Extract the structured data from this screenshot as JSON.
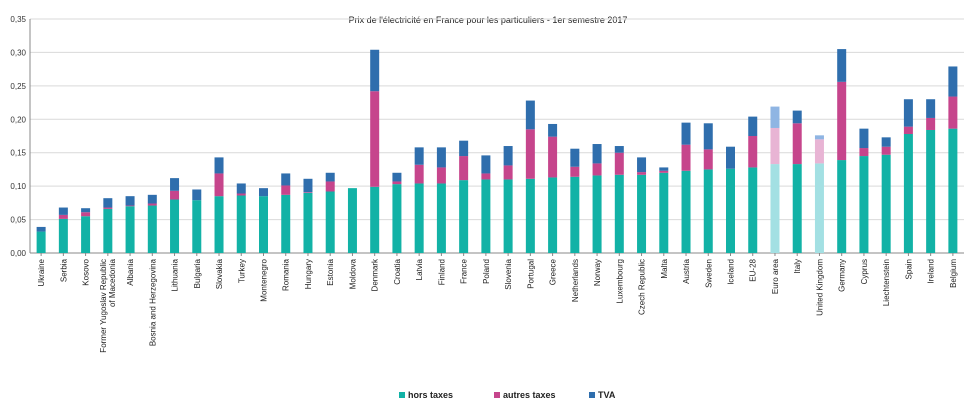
{
  "chart_data": {
    "type": "bar",
    "stacked": true,
    "title": "Prix de l'électricité en France pour les particuliers - 1er semestre 2017",
    "xlabel": "",
    "ylabel": "",
    "ylim": [
      0,
      0.35
    ],
    "yticks": [
      "0,00",
      "0,05",
      "0,10",
      "0,15",
      "0,20",
      "0,25",
      "0,30",
      "0,35"
    ],
    "grid": true,
    "legend_position": "bottom",
    "categories": [
      "Ukraine",
      "Serbia",
      "Kosovo",
      "Former Yugoslav Republic of Macedonia",
      "Albania",
      "Bosnia and Herzegovina",
      "Lithuania",
      "Bulgaria",
      "Slovakia",
      "Turkey",
      "Montenegro",
      "Romania",
      "Hungary",
      "Estonia",
      "Moldova",
      "Denmark",
      "Croatia",
      "Latvia",
      "Finland",
      "France",
      "Poland",
      "Slovenia",
      "Portugal",
      "Greece",
      "Netherlands",
      "Norway",
      "Luxembourg",
      "Czech Republic",
      "Malta",
      "Austria",
      "Sweden",
      "Iceland",
      "EU-28",
      "Euro area",
      "Italy",
      "United Kingdom",
      "Germany",
      "Cyprus",
      "Liechtenstein",
      "Spain",
      "Ireland",
      "Belgium"
    ],
    "category_lines": [
      [
        "Ukraine"
      ],
      [
        "Serbia"
      ],
      [
        "Kosovo"
      ],
      [
        "Former Yugoslav Republic",
        "of Macedonia"
      ],
      [
        "Albania"
      ],
      [
        "Bosnia and Herzegovina"
      ],
      [
        "Lithuania"
      ],
      [
        "Bulgaria"
      ],
      [
        "Slovakia"
      ],
      [
        "Turkey"
      ],
      [
        "Montenegro"
      ],
      [
        "Romania"
      ],
      [
        "Hungary"
      ],
      [
        "Estonia"
      ],
      [
        "Moldova"
      ],
      [
        "Denmark"
      ],
      [
        "Croatia"
      ],
      [
        "Latvia"
      ],
      [
        "Finland"
      ],
      [
        "France"
      ],
      [
        "Poland"
      ],
      [
        "Slovenia"
      ],
      [
        "Portugal"
      ],
      [
        "Greece"
      ],
      [
        "Netherlands"
      ],
      [
        "Norway"
      ],
      [
        "Luxembourg"
      ],
      [
        "Czech Republic"
      ],
      [
        "Malta"
      ],
      [
        "Austria"
      ],
      [
        "Sweden"
      ],
      [
        "Iceland"
      ],
      [
        "EU-28"
      ],
      [
        "Euro area"
      ],
      [
        "Italy"
      ],
      [
        "United Kingdom"
      ],
      [
        "Germany"
      ],
      [
        "Cyprus"
      ],
      [
        "Liechtenstein"
      ],
      [
        "Spain"
      ],
      [
        "Ireland"
      ],
      [
        "Belgium"
      ]
    ],
    "series": [
      {
        "name": "hors taxes",
        "color": "#12b2a6",
        "values": [
          0.032,
          0.051,
          0.055,
          0.066,
          0.07,
          0.071,
          0.08,
          0.079,
          0.085,
          0.086,
          0.085,
          0.087,
          0.09,
          0.092,
          0.097,
          0.099,
          0.103,
          0.104,
          0.104,
          0.109,
          0.11,
          0.11,
          0.111,
          0.113,
          0.114,
          0.116,
          0.117,
          0.117,
          0.12,
          0.123,
          0.125,
          0.126,
          0.128,
          0.133,
          0.133,
          0.134,
          0.139,
          0.145,
          0.147,
          0.178,
          0.184,
          0.186
        ]
      },
      {
        "name": "autres taxes",
        "color": "#c6458c",
        "values": [
          0.0,
          0.006,
          0.006,
          0.002,
          0.001,
          0.003,
          0.013,
          0.0,
          0.034,
          0.003,
          0.0,
          0.014,
          0.001,
          0.015,
          0.0,
          0.143,
          0.004,
          0.028,
          0.024,
          0.036,
          0.009,
          0.021,
          0.074,
          0.061,
          0.015,
          0.018,
          0.033,
          0.004,
          0.003,
          0.039,
          0.03,
          0.0,
          0.047,
          0.054,
          0.061,
          0.036,
          0.117,
          0.012,
          0.012,
          0.011,
          0.018,
          0.048
        ]
      },
      {
        "name": "TVA",
        "color": "#2f6ead",
        "values": [
          0.007,
          0.011,
          0.006,
          0.014,
          0.014,
          0.013,
          0.019,
          0.016,
          0.024,
          0.015,
          0.012,
          0.018,
          0.02,
          0.013,
          0.0,
          0.062,
          0.013,
          0.026,
          0.03,
          0.023,
          0.027,
          0.029,
          0.043,
          0.019,
          0.027,
          0.029,
          0.01,
          0.022,
          0.005,
          0.033,
          0.039,
          0.033,
          0.029,
          0.032,
          0.019,
          0.006,
          0.049,
          0.029,
          0.014,
          0.041,
          0.028,
          0.045
        ]
      }
    ],
    "highlight": {
      "France_reference": "Slovenia",
      "Euro area": {
        "colors": [
          "#a3e0e3",
          "#e8b4d4",
          "#8fb5e3"
        ]
      },
      "United Kingdom": {
        "colors": [
          "#a3e0e3",
          "#e8b4d4",
          "#8fb5e3"
        ]
      }
    }
  }
}
